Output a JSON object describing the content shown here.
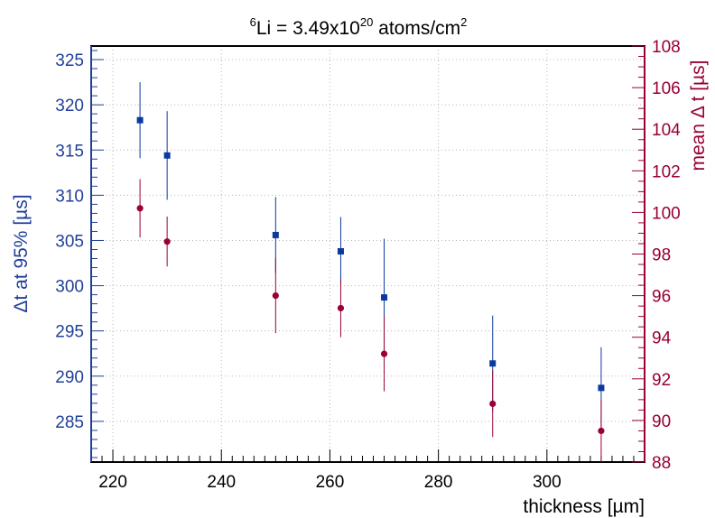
{
  "chart_data": {
    "type": "scatter",
    "title": {
      "pre_sup": "6",
      "pre": "Li = 3.49x10",
      "exp": "20",
      "mid": " atoms/cm",
      "unit_sup": "2"
    },
    "xlabel": "thickness [µm]",
    "ylabel_left": "Δt at 95% [µs]",
    "ylabel_right": "mean Δ t [µs]",
    "xlim": [
      216,
      318
    ],
    "ylim_left": [
      280.5,
      326.5
    ],
    "ylim_right": [
      88,
      108
    ],
    "x_ticks": [
      220,
      240,
      260,
      280,
      300
    ],
    "y_left_ticks": [
      285,
      290,
      295,
      300,
      305,
      310,
      315,
      320,
      325
    ],
    "y_right_ticks": [
      88,
      90,
      92,
      94,
      96,
      98,
      100,
      102,
      104,
      106,
      108
    ],
    "grid": true,
    "colors": {
      "left": "#1f3f99",
      "right": "#990033",
      "blue_marker": "#0a3a9e",
      "red_marker": "#99003a"
    },
    "series": [
      {
        "axis": "left",
        "marker": "square",
        "x": [
          225,
          230,
          250,
          262,
          270,
          290,
          310
        ],
        "y": [
          318.3,
          314.4,
          305.6,
          303.8,
          298.7,
          291.4,
          288.7
        ],
        "err": [
          4.2,
          4.9,
          4.2,
          3.8,
          6.5,
          5.3,
          4.5
        ]
      },
      {
        "axis": "right",
        "marker": "circle",
        "x": [
          225,
          230,
          250,
          262,
          270,
          290,
          310
        ],
        "y": [
          100.2,
          98.6,
          96.0,
          95.4,
          93.2,
          90.8,
          89.5
        ],
        "err": [
          1.4,
          1.2,
          1.8,
          1.4,
          1.8,
          1.6,
          1.5
        ]
      }
    ]
  }
}
